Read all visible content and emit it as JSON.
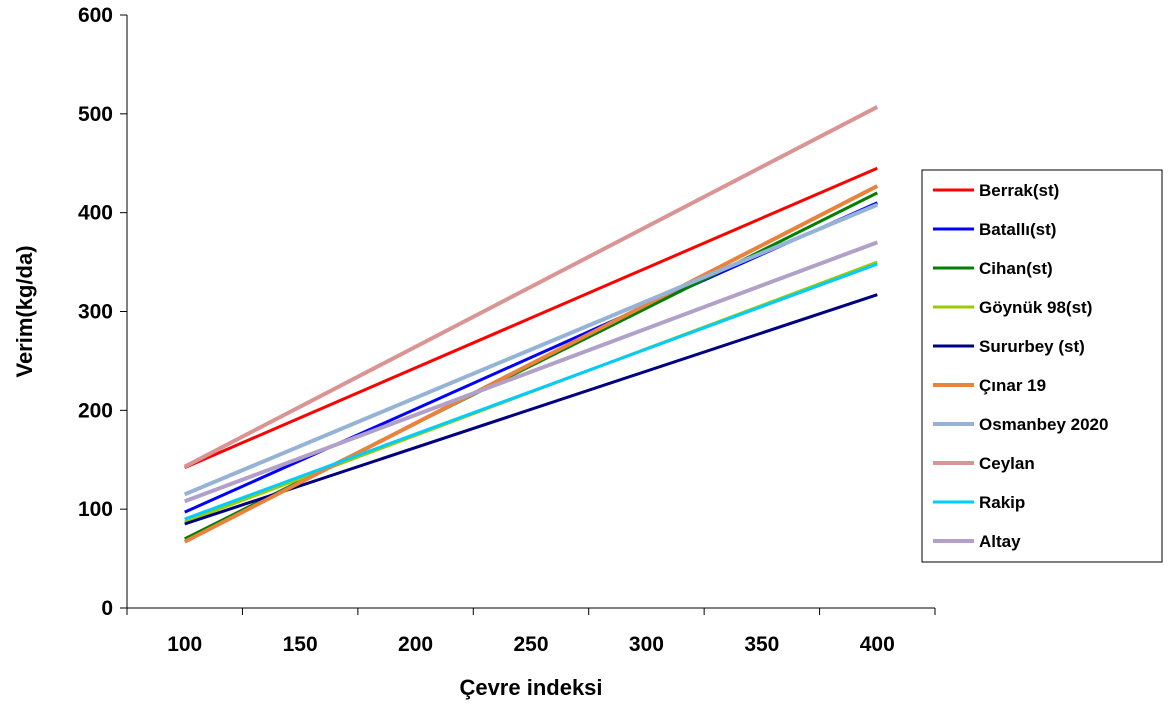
{
  "chart_data": {
    "type": "line",
    "title": "",
    "xlabel": "Çevre indeksi",
    "ylabel": "Verim(kg/da)",
    "xlim": [
      75,
      425
    ],
    "ylim": [
      0,
      600
    ],
    "x_ticks": [
      100,
      150,
      200,
      250,
      300,
      350,
      400
    ],
    "y_ticks": [
      0,
      100,
      200,
      300,
      400,
      500,
      600
    ],
    "grid": false,
    "legend_position": "right",
    "x": [
      100,
      400
    ],
    "series": [
      {
        "name": "Berrak(st)",
        "color": "#ff0000",
        "values": [
          142,
          445
        ]
      },
      {
        "name": "Batallı(st)",
        "color": "#0000ff",
        "values": [
          97,
          410
        ]
      },
      {
        "name": "Cihan(st)",
        "color": "#008000",
        "values": [
          70,
          420
        ]
      },
      {
        "name": "Göynük 98(st)",
        "color": "#99cc00",
        "values": [
          87,
          350
        ]
      },
      {
        "name": "Sururbey (st)",
        "color": "#000080",
        "values": [
          85,
          317
        ]
      },
      {
        "name": "Çınar 19",
        "color": "#e8823c",
        "values": [
          67,
          427
        ]
      },
      {
        "name": "Osmanbey 2020",
        "color": "#95b3d7",
        "values": [
          115,
          408
        ]
      },
      {
        "name": "Ceylan",
        "color": "#d99594",
        "values": [
          143,
          507
        ]
      },
      {
        "name": "Rakip",
        "color": "#00ccff",
        "values": [
          90,
          348
        ]
      },
      {
        "name": "Altay",
        "color": "#b1a0c7",
        "values": [
          108,
          370
        ]
      }
    ]
  }
}
